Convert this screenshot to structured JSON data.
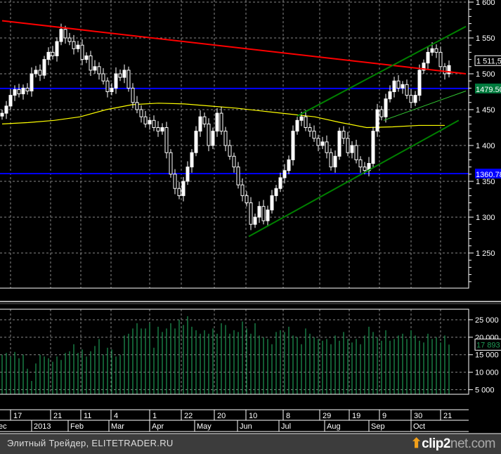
{
  "chart_data": {
    "type": "candlestick",
    "price_axis": {
      "ticks": [
        "1 600",
        "1 550",
        "1 500",
        "1 450",
        "1 400",
        "1 350",
        "1 300",
        "1 250"
      ],
      "tick_values": [
        1600,
        1550,
        1500,
        1450,
        1400,
        1350,
        1300,
        1250
      ],
      "ylim": [
        1205,
        1603
      ]
    },
    "closes": [
      1445,
      1455,
      1470,
      1478,
      1472,
      1480,
      1476,
      1500,
      1505,
      1498,
      1520,
      1530,
      1525,
      1545,
      1562,
      1550,
      1545,
      1535,
      1540,
      1520,
      1525,
      1505,
      1510,
      1500,
      1490,
      1475,
      1480,
      1500,
      1495,
      1505,
      1480,
      1460,
      1450,
      1440,
      1430,
      1435,
      1425,
      1420,
      1425,
      1390,
      1360,
      1340,
      1330,
      1350,
      1370,
      1390,
      1420,
      1440,
      1430,
      1400,
      1420,
      1445,
      1420,
      1400,
      1385,
      1370,
      1345,
      1330,
      1320,
      1290,
      1300,
      1315,
      1295,
      1310,
      1330,
      1340,
      1355,
      1365,
      1380,
      1420,
      1435,
      1440,
      1425,
      1420,
      1410,
      1400,
      1405,
      1390,
      1370,
      1385,
      1420,
      1410,
      1390,
      1400,
      1380,
      1370,
      1365,
      1375,
      1420,
      1450,
      1440,
      1465,
      1475,
      1490,
      1480,
      1485,
      1470,
      1460,
      1470,
      1505,
      1515,
      1530,
      1535,
      1530,
      1510,
      1500,
      1511.5
    ],
    "last_price_label": "1 511,5",
    "horizontal_levels": [
      {
        "value": 1479.5,
        "label": "1479.50",
        "color": "#0000ff",
        "label_bg": "#007a3d"
      },
      {
        "value": 1360.78,
        "label": "1360.78",
        "color": "#0000ff",
        "label_bg": "#0000ff"
      }
    ],
    "trendlines": [
      {
        "color": "#ff0000",
        "from_price": 1574,
        "to_price": 1500,
        "from_index": 0,
        "to_index": 110
      },
      {
        "color": "#008000",
        "from_price": 1441,
        "to_price": 1566,
        "from_index": 70,
        "to_index": 110
      },
      {
        "color": "#008000",
        "from_price": 1273,
        "to_price": 1435,
        "from_index": 58.5,
        "to_index": 108.3
      },
      {
        "color": "#33cc33",
        "from_price": 1435,
        "to_price": 1476,
        "from_index": 90.5,
        "to_index": 110
      }
    ],
    "moving_average": {
      "color": "#ffff00",
      "values": [
        1430,
        1432,
        1435,
        1440,
        1450,
        1457,
        1459,
        1458,
        1455,
        1452,
        1448,
        1444,
        1440,
        1432,
        1425,
        1426,
        1428,
        1428
      ],
      "from_index": 0,
      "to_index": 105
    },
    "volume": {
      "ticks": [
        "25 000",
        "20 000",
        "15 000",
        "10 000",
        "5 000"
      ],
      "tick_values": [
        25000,
        20000,
        15000,
        10000,
        5000
      ],
      "ylim": [
        3700,
        28000
      ],
      "color": "#1f9a55",
      "last_label": "17 893",
      "values": [
        15000,
        15500,
        14500,
        15800,
        14000,
        15000,
        11000,
        7500,
        12500,
        15000,
        14500,
        14000,
        13000,
        14500,
        13500,
        15500,
        16000,
        18000,
        15500,
        16500,
        14500,
        16000,
        17500,
        19500,
        15000,
        17000,
        16500,
        14500,
        15000,
        20500,
        21000,
        22500,
        24000,
        22500,
        22500,
        24000,
        17000,
        23000,
        21500,
        22500,
        24000,
        22500,
        25000,
        23500,
        26000,
        23000,
        22000,
        21000,
        22000,
        21000,
        22500,
        21000,
        24000,
        23500,
        21000,
        22000,
        21500,
        24500,
        22500,
        21000,
        24000,
        20500,
        20000,
        19500,
        18000,
        21500,
        22000,
        21500,
        23000,
        20500,
        20000,
        18000,
        22500,
        21000,
        20000,
        19500,
        19000,
        19500,
        18000,
        20500,
        19000,
        21500,
        19500,
        18500,
        19500,
        18000,
        20500,
        23000,
        21500,
        20000,
        19000,
        22000,
        19000,
        19500,
        20500,
        21000,
        19500,
        22000,
        20500,
        19000,
        18500,
        21000,
        19500,
        20000,
        18500,
        20500,
        17893
      ]
    },
    "x_axis": {
      "day_ticks": [
        "17",
        "21",
        "11",
        "4",
        "1",
        "22",
        "20",
        "10",
        "8",
        "29",
        "19",
        "9",
        "30",
        "21"
      ],
      "month_labels": [
        "ec",
        "2013",
        "Feb",
        "Mar",
        "Apr",
        "May",
        "Jun",
        "Jul",
        "Aug",
        "Sep",
        "Oct"
      ]
    }
  },
  "footer": {
    "text": "Элитный Трейдер, ELITETRADER.RU",
    "logo": "clip2net.com"
  }
}
